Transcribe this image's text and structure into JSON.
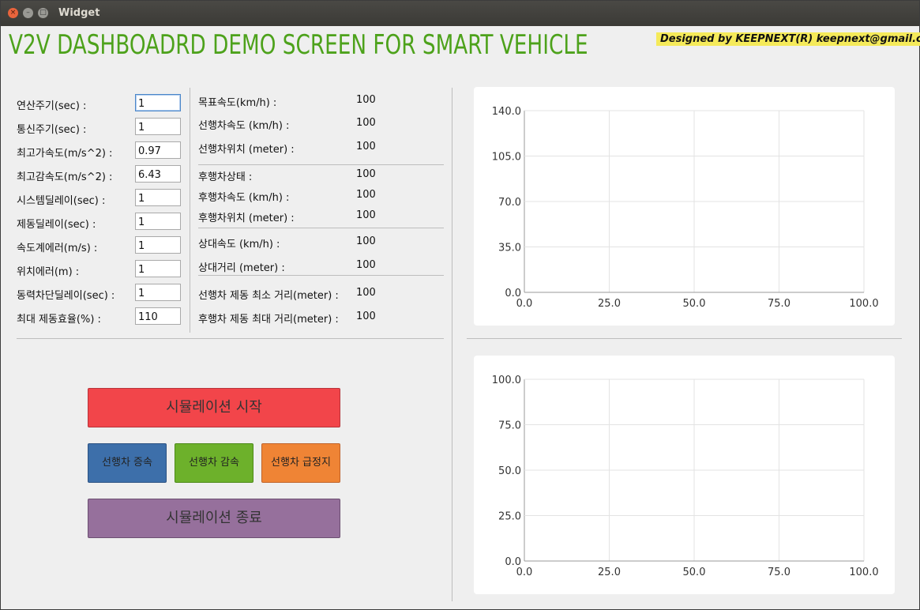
{
  "window": {
    "title": "Widget",
    "close_glyph": "×",
    "min_glyph": "–",
    "max_glyph": "□"
  },
  "header": {
    "title": "V2V DASHBOADRD DEMO SCREEN FOR SMART VEHICLE",
    "credit": "Designed by KEEPNEXT(R) keepnext@gmail.com"
  },
  "params": [
    {
      "label": "연산주기(sec) :",
      "value": "1"
    },
    {
      "label": "통신주기(sec) :",
      "value": "1"
    },
    {
      "label": "최고가속도(m/s^2) :",
      "value": "0.97"
    },
    {
      "label": "최고감속도(m/s^2) :",
      "value": "6.43"
    },
    {
      "label": "시스템딜레이(sec) :",
      "value": "1"
    },
    {
      "label": "제동딜레이(sec) :",
      "value": "1"
    },
    {
      "label": "속도계에러(m/s) :",
      "value": "1"
    },
    {
      "label": "위치에러(m) :",
      "value": "1"
    },
    {
      "label": "동력차단딜레이(sec) :",
      "value": "1"
    },
    {
      "label": "최대 제동효율(%) :",
      "value": "110"
    }
  ],
  "status": [
    {
      "label": "목표속도(km/h) :",
      "value": "100"
    },
    {
      "label": "선행차속도 (km/h) :",
      "value": "100"
    },
    {
      "label": "선행차위치 (meter) :",
      "value": "100"
    },
    {
      "label": "후행차상태 :",
      "value": "100"
    },
    {
      "label": "후행차속도 (km/h) :",
      "value": "100"
    },
    {
      "label": "후행차위치 (meter) :",
      "value": "100"
    },
    {
      "label": "상대속도 (km/h) :",
      "value": "100"
    },
    {
      "label": "상대거리 (meter) :",
      "value": "100"
    },
    {
      "label": "선행차 제동 최소 거리(meter) :",
      "value": "100"
    },
    {
      "label": "후행차 제동 최대 거리(meter) :",
      "value": "100"
    }
  ],
  "buttons": {
    "start": "시뮬레이션 시작",
    "accel": "선행차 증속",
    "decel": "선행차 감속",
    "emergency": "선행차 급정지",
    "end": "시뮬레이션 종료"
  },
  "colors": {
    "title_green": "#4da21b",
    "start_red": "#f2454a",
    "accel_blue": "#3d6faa",
    "decel_green": "#6db12b",
    "stop_orange": "#ef8435",
    "end_purple": "#96709c"
  },
  "chart_data": [
    {
      "type": "line",
      "title": "",
      "series": [],
      "xlabel": "",
      "ylabel": "",
      "xlim": [
        0,
        100
      ],
      "ylim": [
        0,
        140
      ],
      "xticks": [
        "0.0",
        "25.0",
        "50.0",
        "75.0",
        "100.0"
      ],
      "yticks": [
        "0.0",
        "35.0",
        "70.0",
        "105.0",
        "140.0"
      ],
      "grid": true
    },
    {
      "type": "line",
      "title": "",
      "series": [],
      "xlabel": "",
      "ylabel": "",
      "xlim": [
        0,
        100
      ],
      "ylim": [
        0,
        100
      ],
      "xticks": [
        "0.0",
        "25.0",
        "50.0",
        "75.0",
        "100.0"
      ],
      "yticks": [
        "0.0",
        "25.0",
        "50.0",
        "75.0",
        "100.0"
      ],
      "grid": true
    }
  ]
}
